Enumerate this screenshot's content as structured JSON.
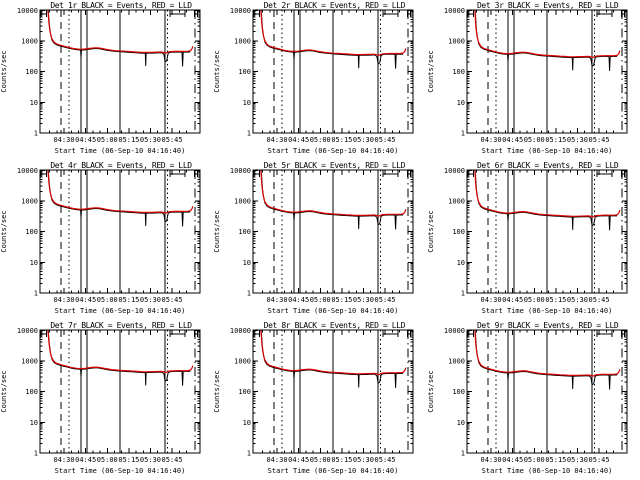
{
  "colors": {
    "background": "#ffffff",
    "events_trace": "#000000",
    "lld_trace": "#dd0000",
    "axis": "#000000"
  },
  "chart_data": {
    "type": "line",
    "layout": {
      "rows": 3,
      "cols": 3
    },
    "yscale": "log",
    "ylim": [
      1,
      10000
    ],
    "ylabel": "Counts/sec",
    "xlabel": "Start Time (06-Sep-10 04:16:40)",
    "x_unit": "minutes after 04:00 UT",
    "x_range": [
      13.3,
      124.4
    ],
    "x_ticks": [
      {
        "m": 30,
        "label": "04:30"
      },
      {
        "m": 45,
        "label": "04:45"
      },
      {
        "m": 60,
        "label": "05:00"
      },
      {
        "m": 75,
        "label": "05:15"
      },
      {
        "m": 90,
        "label": "05:30"
      },
      {
        "m": 105,
        "label": "05:45"
      }
    ],
    "x_minor_step": 5,
    "y_ticks": [
      {
        "v": 1,
        "label": "1"
      },
      {
        "v": 10,
        "label": "10"
      },
      {
        "v": 100,
        "label": "100"
      },
      {
        "v": 1000,
        "label": "1000"
      },
      {
        "v": 10000,
        "label": "10000"
      }
    ],
    "legend": {
      "black": "Events",
      "red": "LLD"
    },
    "vlines": [
      {
        "m": 27.9,
        "style": "dashed"
      },
      {
        "m": 33.4,
        "style": "dotted"
      },
      {
        "m": 41.8,
        "style": "solid"
      },
      {
        "m": 45.9,
        "style": "solid"
      },
      {
        "m": 68.8,
        "style": "solid"
      },
      {
        "m": 100.1,
        "style": "solid"
      },
      {
        "m": 101.8,
        "style": "dotted"
      },
      {
        "m": 120.9,
        "style": "dashdot"
      }
    ],
    "panels": [
      {
        "detector": "Det 1r",
        "title": "Det 1r BLACK = Events, RED = LLD",
        "level_scale": 1.0
      },
      {
        "detector": "Det 2r",
        "title": "Det 2r BLACK = Events, RED = LLD",
        "level_scale": 0.85
      },
      {
        "detector": "Det 3r",
        "title": "Det 3r BLACK = Events, RED = LLD",
        "level_scale": 0.72
      },
      {
        "detector": "Det 4r",
        "title": "Det 4r BLACK = Events, RED = LLD",
        "level_scale": 1.0
      },
      {
        "detector": "Det 5r",
        "title": "Det 5r BLACK = Events, RED = LLD",
        "level_scale": 0.8
      },
      {
        "detector": "Det 6r",
        "title": "Det 6r BLACK = Events, RED = LLD",
        "level_scale": 0.75
      },
      {
        "detector": "Det 7r",
        "title": "Det 7r BLACK = Events, RED = LLD",
        "level_scale": 1.05
      },
      {
        "detector": "Det 8r",
        "title": "Det 8r BLACK = Events, RED = LLD",
        "level_scale": 0.9
      },
      {
        "detector": "Det 9r",
        "title": "Det 9r BLACK = Events, RED = LLD",
        "level_scale": 0.8
      }
    ],
    "series": {
      "red_lld": [
        [
          18.8,
          10500
        ],
        [
          19.4,
          4200
        ],
        [
          20.2,
          2100
        ],
        [
          21.3,
          1250
        ],
        [
          22.8,
          930
        ],
        [
          24.5,
          800
        ],
        [
          26.5,
          740
        ],
        [
          28.5,
          695
        ],
        [
          30.5,
          655
        ],
        [
          32.5,
          618
        ],
        [
          34.5,
          585
        ],
        [
          36.5,
          560
        ],
        [
          38.5,
          542
        ],
        [
          40.5,
          532
        ],
        [
          42.5,
          530
        ],
        [
          44.5,
          538
        ],
        [
          47,
          558
        ],
        [
          49.5,
          578
        ],
        [
          52,
          590
        ],
        [
          54,
          583
        ],
        [
          56,
          563
        ],
        [
          58,
          538
        ],
        [
          60.5,
          513
        ],
        [
          63,
          492
        ],
        [
          66,
          476
        ],
        [
          69,
          464
        ],
        [
          72,
          456
        ],
        [
          75,
          447
        ],
        [
          78,
          438
        ],
        [
          81,
          429
        ],
        [
          84,
          421
        ],
        [
          87,
          417
        ],
        [
          90,
          420
        ],
        [
          93,
          423
        ],
        [
          95.5,
          427
        ],
        [
          97.5,
          430
        ],
        [
          99.3,
          415
        ],
        [
          100.3,
          392
        ],
        [
          101.3,
          405
        ],
        [
          102.3,
          430
        ],
        [
          104,
          443
        ],
        [
          106.5,
          450
        ],
        [
          109,
          454
        ],
        [
          111.5,
          452
        ],
        [
          114,
          453
        ],
        [
          116,
          456
        ],
        [
          117.8,
          472
        ],
        [
          118.8,
          540
        ],
        [
          119.4,
          660
        ]
      ],
      "black_events": [
        [
          19.0,
          10500
        ],
        [
          19.8,
          3200
        ],
        [
          20.6,
          1700
        ],
        [
          21.6,
          1050
        ],
        [
          23,
          840
        ],
        [
          25,
          735
        ],
        [
          27,
          682
        ],
        [
          29,
          642
        ],
        [
          31,
          610
        ],
        [
          33,
          578
        ],
        [
          35,
          550
        ],
        [
          37,
          527
        ],
        [
          39,
          512
        ],
        [
          41,
          502
        ],
        [
          41.5,
          498
        ],
        [
          41.8,
          285
        ],
        [
          42.1,
          498
        ],
        [
          43,
          502
        ],
        [
          45,
          512
        ],
        [
          48,
          536
        ],
        [
          51,
          556
        ],
        [
          53,
          560
        ],
        [
          55,
          545
        ],
        [
          57,
          521
        ],
        [
          59,
          498
        ],
        [
          62,
          474
        ],
        [
          65,
          455
        ],
        [
          68,
          443
        ],
        [
          71,
          434
        ],
        [
          74,
          424
        ],
        [
          77,
          415
        ],
        [
          80,
          406
        ],
        [
          83,
          398
        ],
        [
          86,
          393
        ],
        [
          86.4,
          392
        ],
        [
          86.7,
          155
        ],
        [
          87.0,
          392
        ],
        [
          89,
          396
        ],
        [
          92,
          398
        ],
        [
          95,
          403
        ],
        [
          98,
          407
        ],
        [
          99.3,
          360
        ],
        [
          100.2,
          205
        ],
        [
          101.3,
          225
        ],
        [
          102.3,
          395
        ],
        [
          104,
          422
        ],
        [
          107,
          429
        ],
        [
          110,
          431
        ],
        [
          111.9,
          428
        ],
        [
          112.3,
          150
        ],
        [
          112.7,
          428
        ],
        [
          115,
          429
        ],
        [
          117.5,
          430
        ]
      ],
      "black_clipped_top_segments": [
        [
          14.0,
          17.8
        ],
        [
          103.5,
          114.0
        ],
        [
          120.6,
          122.8
        ]
      ]
    }
  }
}
